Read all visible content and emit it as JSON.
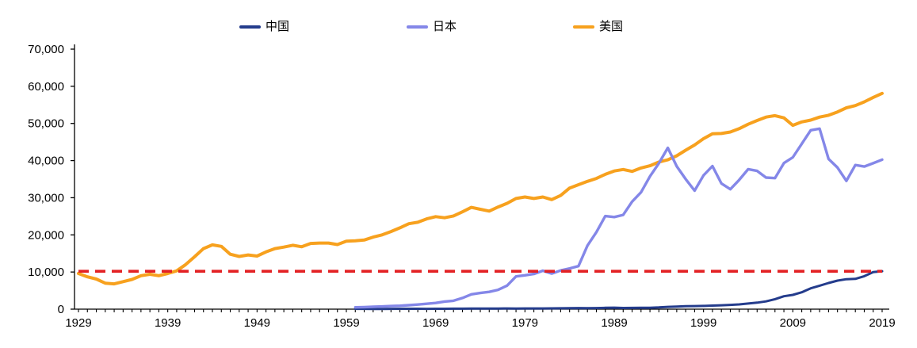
{
  "page": {
    "background": "#ffffff"
  },
  "chart_data": {
    "type": "line",
    "title": "",
    "xlabel": "",
    "ylabel": "",
    "grid": false,
    "legend_position": "top",
    "x_axis": {
      "min": 1929,
      "max": 2019,
      "tick_interval": 1,
      "label_interval": 10,
      "labels": [
        "1929",
        "1939",
        "1949",
        "1959",
        "1969",
        "1979",
        "1989",
        "1999",
        "2009",
        "2019"
      ]
    },
    "y_axis": {
      "min": 0,
      "max": 70000,
      "tick_interval": 10000,
      "labels": [
        "0",
        "10,000",
        "20,000",
        "30,000",
        "40,000",
        "50,000",
        "60,000",
        "70,000"
      ]
    },
    "reference_line": {
      "value": 10200,
      "color": "#E32124",
      "style": "dashed"
    },
    "series": [
      {
        "id": "china",
        "name": "中国",
        "color": "#243C8C",
        "start_year": 1960,
        "values": [
          90,
          76,
          71,
          74,
          85,
          98,
          104,
          97,
          91,
          100,
          113,
          119,
          132,
          157,
          160,
          178,
          165,
          185,
          156,
          184,
          195,
          197,
          203,
          226,
          250,
          294,
          281,
          301,
          369,
          407,
          318,
          333,
          366,
          377,
          473,
          610,
          709,
          782,
          829,
          873,
          959,
          1053,
          1149,
          1289,
          1509,
          1753,
          2099,
          2694,
          3468,
          3832,
          4550,
          5618,
          6317,
          7051,
          7679,
          8067,
          8148,
          8879,
          9977,
          10217
        ]
      },
      {
        "id": "japan",
        "name": "日本",
        "color": "#8487E8",
        "start_year": 1960,
        "values": [
          500,
          560,
          630,
          720,
          840,
          920,
          1060,
          1230,
          1450,
          1670,
          2040,
          2270,
          3000,
          3990,
          4350,
          4660,
          5200,
          6340,
          8820,
          9110,
          9470,
          10360,
          9580,
          10420,
          10980,
          11580,
          17110,
          20750,
          25060,
          24800,
          25370,
          28930,
          31460,
          35770,
          39270,
          43440,
          38440,
          35020,
          31900,
          36030,
          38530,
          33850,
          32300,
          34810,
          37690,
          37220,
          35430,
          35280,
          39340,
          40860,
          44510,
          48170,
          48600,
          40450,
          38110,
          34520,
          38790,
          38390,
          39290,
          40250
        ]
      },
      {
        "id": "usa",
        "name": "美国",
        "color": "#F7A11E",
        "start_year": 1929,
        "values": [
          9600,
          8700,
          8100,
          7000,
          6800,
          7400,
          8000,
          9000,
          9400,
          9000,
          9600,
          10300,
          12000,
          14100,
          16300,
          17300,
          16900,
          14800,
          14200,
          14600,
          14300,
          15400,
          16300,
          16700,
          17200,
          16800,
          17700,
          17800,
          17800,
          17400,
          18300,
          18400,
          18600,
          19400,
          20000,
          20900,
          21900,
          23000,
          23400,
          24300,
          24900,
          24600,
          25100,
          26200,
          27400,
          26900,
          26400,
          27500,
          28500,
          29800,
          30200,
          29800,
          30200,
          29500,
          30600,
          32600,
          33500,
          34400,
          35200,
          36300,
          37200,
          37600,
          37100,
          38000,
          38600,
          39600,
          40200,
          41300,
          42800,
          44200,
          45900,
          47200,
          47300,
          47700,
          48600,
          49800,
          50800,
          51700,
          52100,
          51500,
          49500,
          50400,
          50900,
          51700,
          52200,
          53100,
          54200,
          54800,
          55800,
          57000,
          58100
        ]
      }
    ]
  }
}
